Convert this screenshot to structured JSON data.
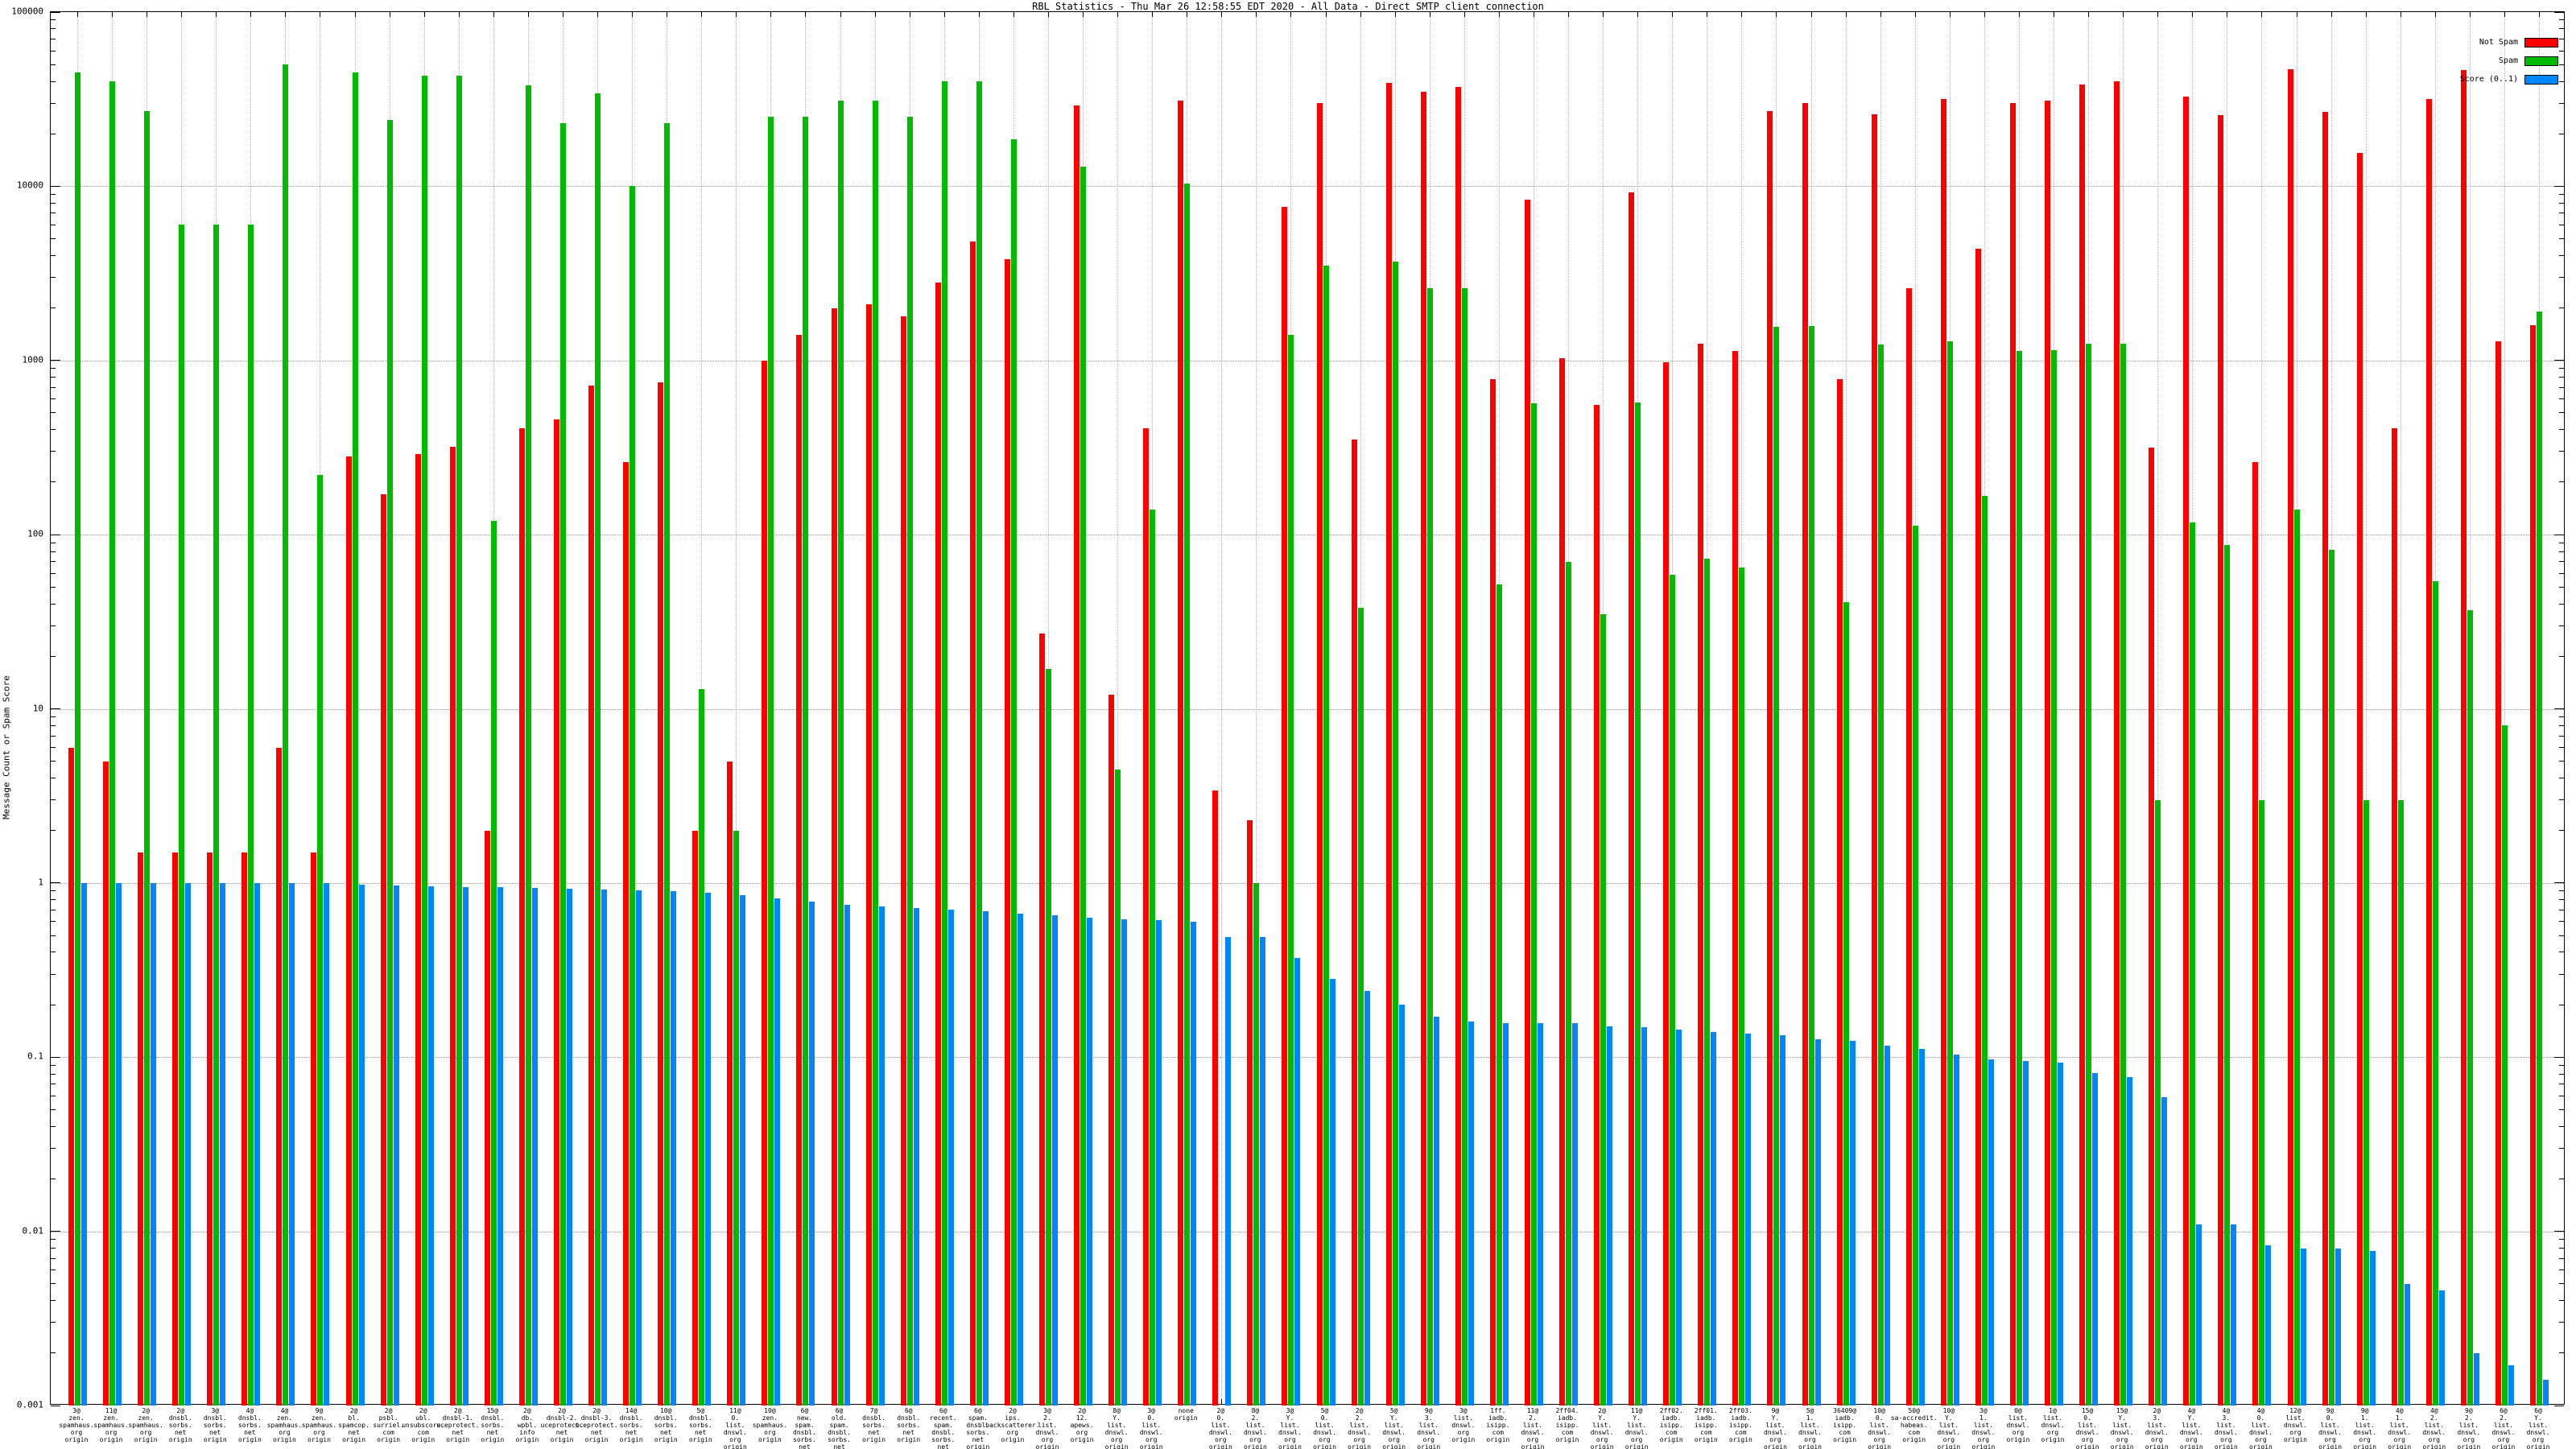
{
  "window": {
    "title": "RBL Statistics - Thu Mar 26 12:58:55 EDT 2020 - All Data - Direct SMTP client connection"
  },
  "chart_data": {
    "type": "bar",
    "title": "RBL Statistics - Thu Mar 26 12:58:55 EDT 2020 - All Data - Direct SMTP client connection",
    "xlabel": "",
    "ylabel": "Message Count or Spam Score",
    "y_scale": "log",
    "ylim": [
      0.001,
      100000
    ],
    "ytick_labels": [
      "100000",
      "10000",
      "1000",
      "100",
      "10",
      "1",
      "0.1",
      "0.01",
      "0.001"
    ],
    "grid": true,
    "legend_position": "top-right",
    "legend": [
      {
        "name": "Not Spam",
        "color": "#ff0000"
      },
      {
        "name": "Spam",
        "color": "#00bb00"
      },
      {
        "name": "Score (0..1)",
        "color": "#0087ff"
      }
    ],
    "series_names": [
      "not_spam",
      "spam",
      "score"
    ],
    "categories": [
      {
        "label": "3@\nzen.\nspamhaus.\norg\norigin",
        "not_spam": 6,
        "spam": 45000,
        "score": 1.0
      },
      {
        "label": "11@\nzen.\nspamhaus.\norg\norigin",
        "not_spam": 5,
        "spam": 40000,
        "score": 1.0
      },
      {
        "label": "2@\nzen.\nspamhaus.\norg\norigin",
        "not_spam": 1.5,
        "spam": 27000,
        "score": 1.0
      },
      {
        "label": "2@\ndnsbl.\nsorbs.\nnet\norigin",
        "not_spam": 1.5,
        "spam": 6000,
        "score": 1.0
      },
      {
        "label": "3@\ndnsbl.\nsorbs.\nnet\norigin",
        "not_spam": 1.5,
        "spam": 6000,
        "score": 1.0
      },
      {
        "label": "4@\ndnsbl.\nsorbs.\nnet\norigin",
        "not_spam": 1.5,
        "spam": 6000,
        "score": 1.0
      },
      {
        "label": "4@\nzen.\nspamhaus.\norg\norigin",
        "not_spam": 6,
        "spam": 50000,
        "score": 1.0
      },
      {
        "label": "9@\nzen.\nspamhaus.\norg\norigin",
        "not_spam": 1.5,
        "spam": 220,
        "score": 1.0
      },
      {
        "label": "2@\nbl.\nspamcop.\nnet\norigin",
        "not_spam": 280,
        "spam": 45000,
        "score": 0.98
      },
      {
        "label": "2@\npsbl.\nsurriel.\ncom\norigin",
        "not_spam": 170,
        "spam": 24000,
        "score": 0.97
      },
      {
        "label": "2@\nubl.\nunsubscore.\ncom\norigin",
        "not_spam": 290,
        "spam": 43000,
        "score": 0.96
      },
      {
        "label": "2@\ndnsbl-1.\nuceprotect.\nnet\norigin",
        "not_spam": 320,
        "spam": 43000,
        "score": 0.95
      },
      {
        "label": "15@\ndnsbl.\nsorbs.\nnet\norigin",
        "not_spam": 2,
        "spam": 120,
        "score": 0.95
      },
      {
        "label": "2@\ndb.\nwpbl.\ninfo\norigin",
        "not_spam": 410,
        "spam": 38000,
        "score": 0.94
      },
      {
        "label": "2@\ndnsbl-2.\nuceprotect.\nnet\norigin",
        "not_spam": 460,
        "spam": 23000,
        "score": 0.93
      },
      {
        "label": "2@\ndnsbl-3.\nuceprotect.\nnet\norigin",
        "not_spam": 715,
        "spam": 34000,
        "score": 0.92
      },
      {
        "label": "14@\ndnsbl.\nsorbs.\nnet\norigin",
        "not_spam": 260,
        "spam": 10000,
        "score": 0.91
      },
      {
        "label": "10@\ndnsbl.\nsorbs.\nnet\norigin",
        "not_spam": 745,
        "spam": 23000,
        "score": 0.9
      },
      {
        "label": "5@\ndnsbl.\nsorbs.\nnet\norigin",
        "not_spam": 2,
        "spam": 13,
        "score": 0.88
      },
      {
        "label": "11@\n0.\nlist.\ndnswl.\norg\norigin",
        "not_spam": 5,
        "spam": 2,
        "score": 0.85
      },
      {
        "label": "10@\nzen.\nspamhaus.\norg\norigin",
        "not_spam": 1000,
        "spam": 25000,
        "score": 0.82
      },
      {
        "label": "6@\nnew.\nspam.\ndnsbl.\nsorbs.\nnet\norigin",
        "not_spam": 1400,
        "spam": 25000,
        "score": 0.78
      },
      {
        "label": "6@\nold.\nspam.\ndnsbl.\nsorbs.\nnet\norigin",
        "not_spam": 2000,
        "spam": 31000,
        "score": 0.75
      },
      {
        "label": "7@\ndnsbl.\nsorbs.\nnet\norigin",
        "not_spam": 2100,
        "spam": 31000,
        "score": 0.73
      },
      {
        "label": "6@\ndnsbl.\nsorbs.\nnet\norigin",
        "not_spam": 1800,
        "spam": 25000,
        "score": 0.72
      },
      {
        "label": "6@\nrecent.\nspam.\ndnsbl.\nsorbs.\nnet\norigin",
        "not_spam": 2800,
        "spam": 40000,
        "score": 0.7
      },
      {
        "label": "6@\nspam.\ndnsbl.\nsorbs.\nnet\norigin",
        "not_spam": 4800,
        "spam": 40000,
        "score": 0.69
      },
      {
        "label": "2@\nips.\nbackscatterer.\norg\norigin",
        "not_spam": 3800,
        "spam": 18600,
        "score": 0.67
      },
      {
        "label": "3@\n2.\nlist.\ndnswl.\norg\norigin",
        "not_spam": 27,
        "spam": 17,
        "score": 0.65
      },
      {
        "label": "2@\n12.\napews.\norg\norigin",
        "not_spam": 29000,
        "spam": 13000,
        "score": 0.63
      },
      {
        "label": "8@\nY.\nlist.\ndnswl.\norg\norigin",
        "not_spam": 12,
        "spam": 4.5,
        "score": 0.62
      },
      {
        "label": "3@\n0.\nlist.\ndnswl.\norg\norigin",
        "not_spam": 410,
        "spam": 140,
        "score": 0.61
      },
      {
        "label": "none\norigin",
        "not_spam": 31000,
        "spam": 10400,
        "score": 0.6
      },
      {
        "label": "2@\n0.\nlist.\ndnswl.\norg\norigin",
        "not_spam": 3.4,
        "spam": 0,
        "score": 0.49
      },
      {
        "label": "8@\n2.\nlist.\ndnswl.\norg\norigin",
        "not_spam": 2.3,
        "spam": 1,
        "score": 0.49
      },
      {
        "label": "3@\nY.\nlist.\ndnswl.\norg\norigin",
        "not_spam": 7600,
        "spam": 1400,
        "score": 0.37
      },
      {
        "label": "5@\n0.\nlist.\ndnswl.\norg\norigin",
        "not_spam": 30000,
        "spam": 3500,
        "score": 0.28
      },
      {
        "label": "2@\n2.\nlist.\ndnswl.\norg\norigin",
        "not_spam": 350,
        "spam": 38,
        "score": 0.24
      },
      {
        "label": "5@\nY.\nlist.\ndnswl.\norg\norigin",
        "not_spam": 39000,
        "spam": 3700,
        "score": 0.2
      },
      {
        "label": "9@\n3.\nlist.\ndnswl.\norg\norigin",
        "not_spam": 35000,
        "spam": 2600,
        "score": 0.17
      },
      {
        "label": "3@\nlist.\ndnswl.\norg\norigin",
        "not_spam": 37000,
        "spam": 2600,
        "score": 0.16
      },
      {
        "label": "1ff.\niadb.\nisipp.\ncom\norigin",
        "not_spam": 780,
        "spam": 52,
        "score": 0.157
      },
      {
        "label": "11@\n2.\nlist.\ndnswl.\norg\norigin",
        "not_spam": 8400,
        "spam": 570,
        "score": 0.157
      },
      {
        "label": "2ff04.\niadb.\nisipp.\ncom\norigin",
        "not_spam": 1030,
        "spam": 70,
        "score": 0.156
      },
      {
        "label": "2@\nY.\nlist.\ndnswl.\norg\norigin",
        "not_spam": 555,
        "spam": 35,
        "score": 0.15
      },
      {
        "label": "11@\nY.\nlist.\ndnswl.\norg\norigin",
        "not_spam": 9200,
        "spam": 575,
        "score": 0.148
      },
      {
        "label": "2ff02.\niadb.\nisipp.\ncom\norigin",
        "not_spam": 975,
        "spam": 59,
        "score": 0.144
      },
      {
        "label": "2ff01.\niadb.\nisipp.\ncom\norigin",
        "not_spam": 1250,
        "spam": 73,
        "score": 0.14
      },
      {
        "label": "2ff03.\niadb.\nisipp.\ncom\norigin",
        "not_spam": 1130,
        "spam": 65,
        "score": 0.136
      },
      {
        "label": "9@\nY.\nlist.\ndnswl.\norg\norigin",
        "not_spam": 27000,
        "spam": 1560,
        "score": 0.133
      },
      {
        "label": "5@\n1.\nlist.\ndnswl.\norg\norigin",
        "not_spam": 30000,
        "spam": 1580,
        "score": 0.127
      },
      {
        "label": "36409@\niadb.\nisipp.\ncom\norigin",
        "not_spam": 780,
        "spam": 41,
        "score": 0.124
      },
      {
        "label": "10@\n0.\nlist.\ndnswl.\norg\norigin",
        "not_spam": 26000,
        "spam": 1230,
        "score": 0.116
      },
      {
        "label": "50@\nsa-accredit.\nhabeas.\ncom\norigin",
        "not_spam": 2600,
        "spam": 112,
        "score": 0.111
      },
      {
        "label": "10@\nY.\nlist.\ndnswl.\norg\norigin",
        "not_spam": 31600,
        "spam": 1290,
        "score": 0.104
      },
      {
        "label": "3@\n1.\nlist.\ndnswl.\norg\norigin",
        "not_spam": 4400,
        "spam": 166,
        "score": 0.097
      },
      {
        "label": "0@\nlist.\ndnswl.\norg\norigin",
        "not_spam": 30000,
        "spam": 1130,
        "score": 0.095
      },
      {
        "label": "1@\nlist.\ndnswl.\norg\norigin",
        "not_spam": 31000,
        "spam": 1140,
        "score": 0.093
      },
      {
        "label": "15@\n0.\nlist.\ndnswl.\norg\norigin",
        "not_spam": 38500,
        "spam": 1250,
        "score": 0.081
      },
      {
        "label": "15@\nY.\nlist.\ndnswl.\norg\norigin",
        "not_spam": 40000,
        "spam": 1250,
        "score": 0.077
      },
      {
        "label": "2@\n3.\nlist.\ndnswl.\norg\norigin",
        "not_spam": 316,
        "spam": 3,
        "score": 0.059
      },
      {
        "label": "4@\nY.\nlist.\ndnswl.\norg\norigin",
        "not_spam": 32600,
        "spam": 117,
        "score": 0.011
      },
      {
        "label": "4@\n3.\nlist.\ndnswl.\norg\norigin",
        "not_spam": 25700,
        "spam": 87,
        "score": 0.011
      },
      {
        "label": "4@\n0.\nlist.\ndnswl.\norg\norigin",
        "not_spam": 260,
        "spam": 3,
        "score": 0.0083
      },
      {
        "label": "12@\nlist.\ndnswl.\norg\norigin",
        "not_spam": 47000,
        "spam": 139,
        "score": 0.008
      },
      {
        "label": "9@\n0.\nlist.\ndnswl.\norg\norigin",
        "not_spam": 26600,
        "spam": 82,
        "score": 0.008
      },
      {
        "label": "9@\n1.\nlist.\ndnswl.\norg\norigin",
        "not_spam": 15500,
        "spam": 3,
        "score": 0.0077
      },
      {
        "label": "4@\n1.\nlist.\ndnswl.\norg\norigin",
        "not_spam": 410,
        "spam": 3,
        "score": 0.005
      },
      {
        "label": "4@\n2.\nlist.\ndnswl.\norg\norigin",
        "not_spam": 31600,
        "spam": 54,
        "score": 0.0046
      },
      {
        "label": "9@\n2.\nlist.\ndnswl.\norg\norigin",
        "not_spam": 46500,
        "spam": 37,
        "score": 0.002
      },
      {
        "label": "6@\n2.\nlist.\ndnswl.\norg\norigin",
        "not_spam": 1290,
        "spam": 8,
        "score": 0.0017
      },
      {
        "label": "6@\nY.\nlist.\ndnswl.\norg\norigin",
        "not_spam": 1600,
        "spam": 1900,
        "score": 0.0014
      }
    ]
  }
}
